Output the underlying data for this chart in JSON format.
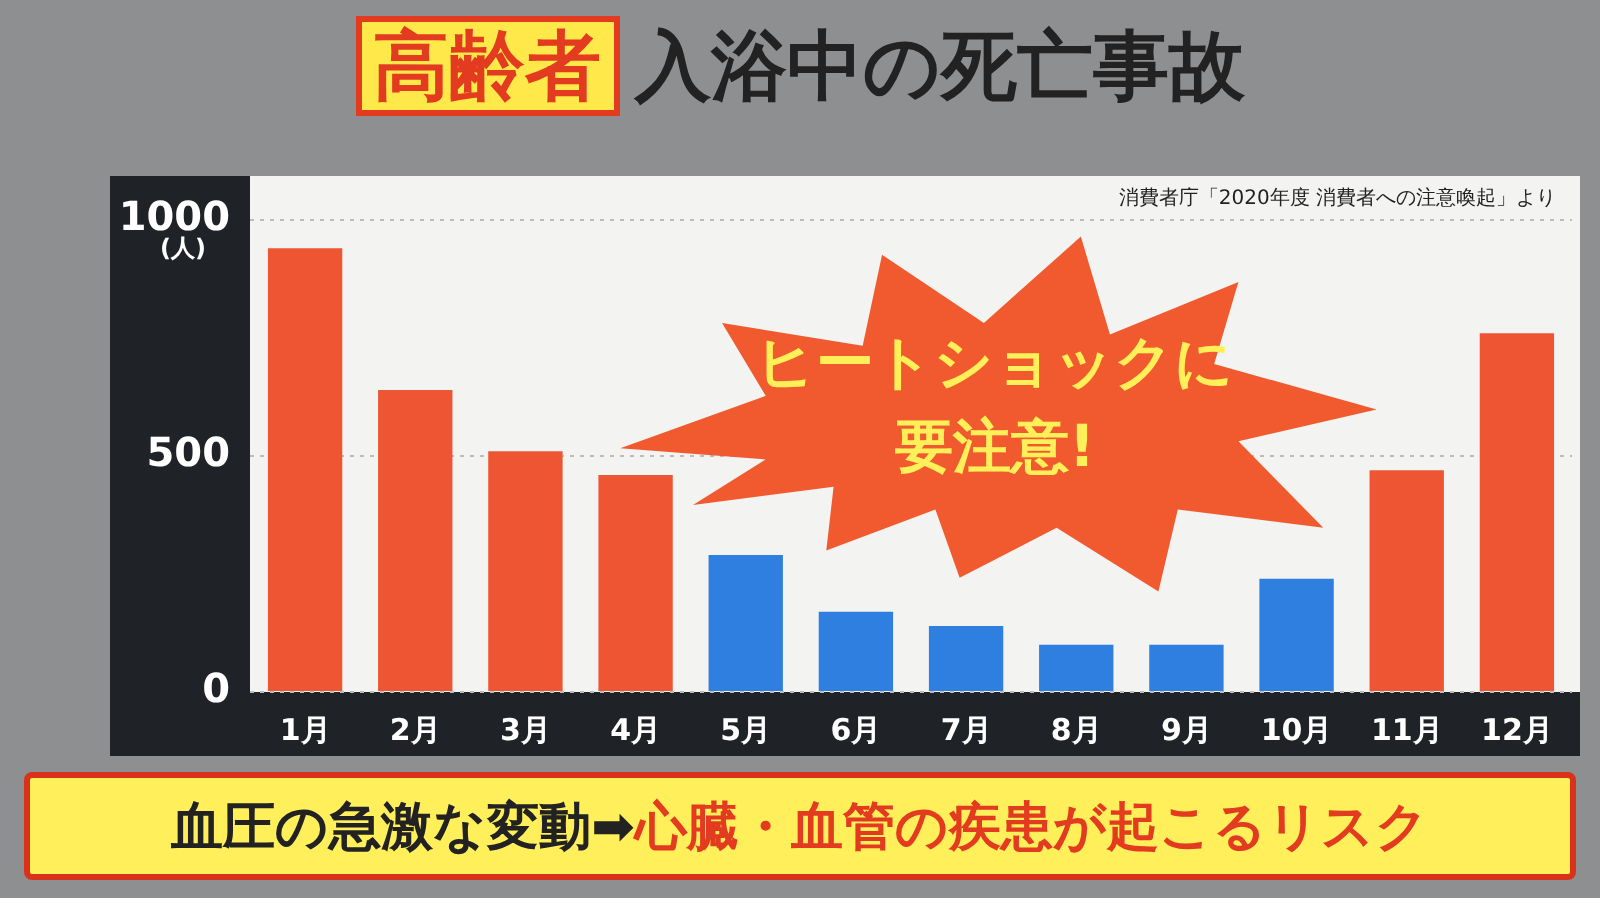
{
  "chart_data": {
    "type": "bar",
    "title": "高齢者 入浴中の死亡事故",
    "ylabel": "(人)",
    "categories": [
      "1月",
      "2月",
      "3月",
      "4月",
      "5月",
      "6月",
      "7月",
      "8月",
      "9月",
      "10月",
      "11月",
      "12月"
    ],
    "values": [
      940,
      640,
      510,
      460,
      290,
      170,
      140,
      100,
      100,
      240,
      470,
      760
    ],
    "colors": [
      "#ee5533",
      "#ee5533",
      "#ee5533",
      "#ee5533",
      "#2f7fe0",
      "#2f7fe0",
      "#2f7fe0",
      "#2f7fe0",
      "#2f7fe0",
      "#2f7fe0",
      "#ee5533",
      "#ee5533"
    ],
    "ylim": [
      0,
      1000
    ],
    "yticks": [
      0,
      500,
      1000
    ],
    "grid": "y",
    "legend": false,
    "annotations": [
      "消費者庁「2020年度 消費者への注意喚起」より",
      "ヒートショックに要注意!",
      "血圧の急激な変動➡心臓・血管の疾患が起こるリスク"
    ]
  }
}
